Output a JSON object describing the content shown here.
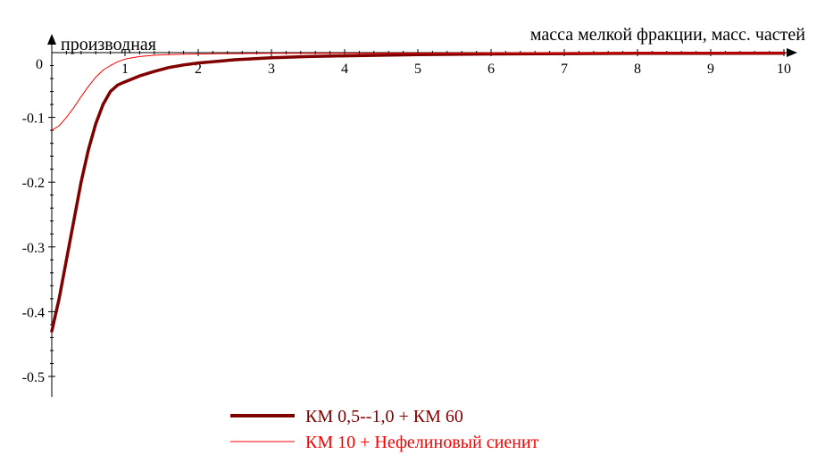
{
  "chart_data": {
    "type": "line",
    "xlabel": "масса мелкой фракции, масс. частей",
    "ylabel": "производная",
    "xlim": [
      0,
      10
    ],
    "ylim": [
      -0.5,
      0
    ],
    "x_ticks": [
      1,
      2,
      3,
      4,
      5,
      6,
      7,
      8,
      9,
      10
    ],
    "y_ticks": [
      0,
      -0.1,
      -0.2,
      -0.3,
      -0.4,
      -0.5
    ],
    "x_tick_labels": [
      "1",
      "2",
      "3",
      "4",
      "5",
      "6",
      "7",
      "8",
      "9",
      "10"
    ],
    "y_tick_labels": [
      "0",
      "-0.1",
      "-0.2",
      "-0.3",
      "-0.4",
      "-0.5"
    ],
    "origin_label": "0",
    "grid": false,
    "legend_position": "bottom-center",
    "series": [
      {
        "name": "КМ 0,5--1,0 + КМ 60",
        "color": "#800000",
        "width": "thick",
        "x": [
          0,
          0.1,
          0.2,
          0.3,
          0.4,
          0.5,
          0.6,
          0.7,
          0.8,
          0.9,
          1.0,
          1.2,
          1.4,
          1.6,
          1.8,
          2.0,
          2.5,
          3.0,
          3.5,
          4.0,
          5.0,
          6.0,
          7.0,
          8.0,
          9.0,
          10.0
        ],
        "y": [
          -0.43,
          -0.38,
          -0.32,
          -0.26,
          -0.2,
          -0.15,
          -0.11,
          -0.08,
          -0.06,
          -0.05,
          -0.045,
          -0.036,
          -0.029,
          -0.023,
          -0.019,
          -0.016,
          -0.011,
          -0.008,
          -0.006,
          -0.005,
          -0.003,
          -0.002,
          -0.0015,
          -0.001,
          -0.001,
          -0.0008
        ]
      },
      {
        "name": "КМ 10 + Нефелиновый сиенит",
        "color": "#ff0000",
        "width": "thin",
        "x": [
          0,
          0.1,
          0.2,
          0.3,
          0.4,
          0.5,
          0.6,
          0.7,
          0.8,
          0.9,
          1.0,
          1.1,
          1.2,
          1.3,
          1.4,
          1.5,
          1.6,
          1.8,
          2.0,
          2.5,
          3.0,
          4.0,
          5.0,
          6.0,
          8.0,
          10.0
        ],
        "y": [
          -0.12,
          -0.113,
          -0.1,
          -0.085,
          -0.068,
          -0.052,
          -0.038,
          -0.027,
          -0.02,
          -0.014,
          -0.01,
          -0.008,
          -0.006,
          -0.005,
          -0.004,
          -0.0035,
          -0.003,
          -0.0025,
          -0.002,
          -0.0015,
          -0.001,
          -0.001,
          -0.0008,
          -0.0008,
          -0.0005,
          -0.0005
        ]
      }
    ]
  }
}
